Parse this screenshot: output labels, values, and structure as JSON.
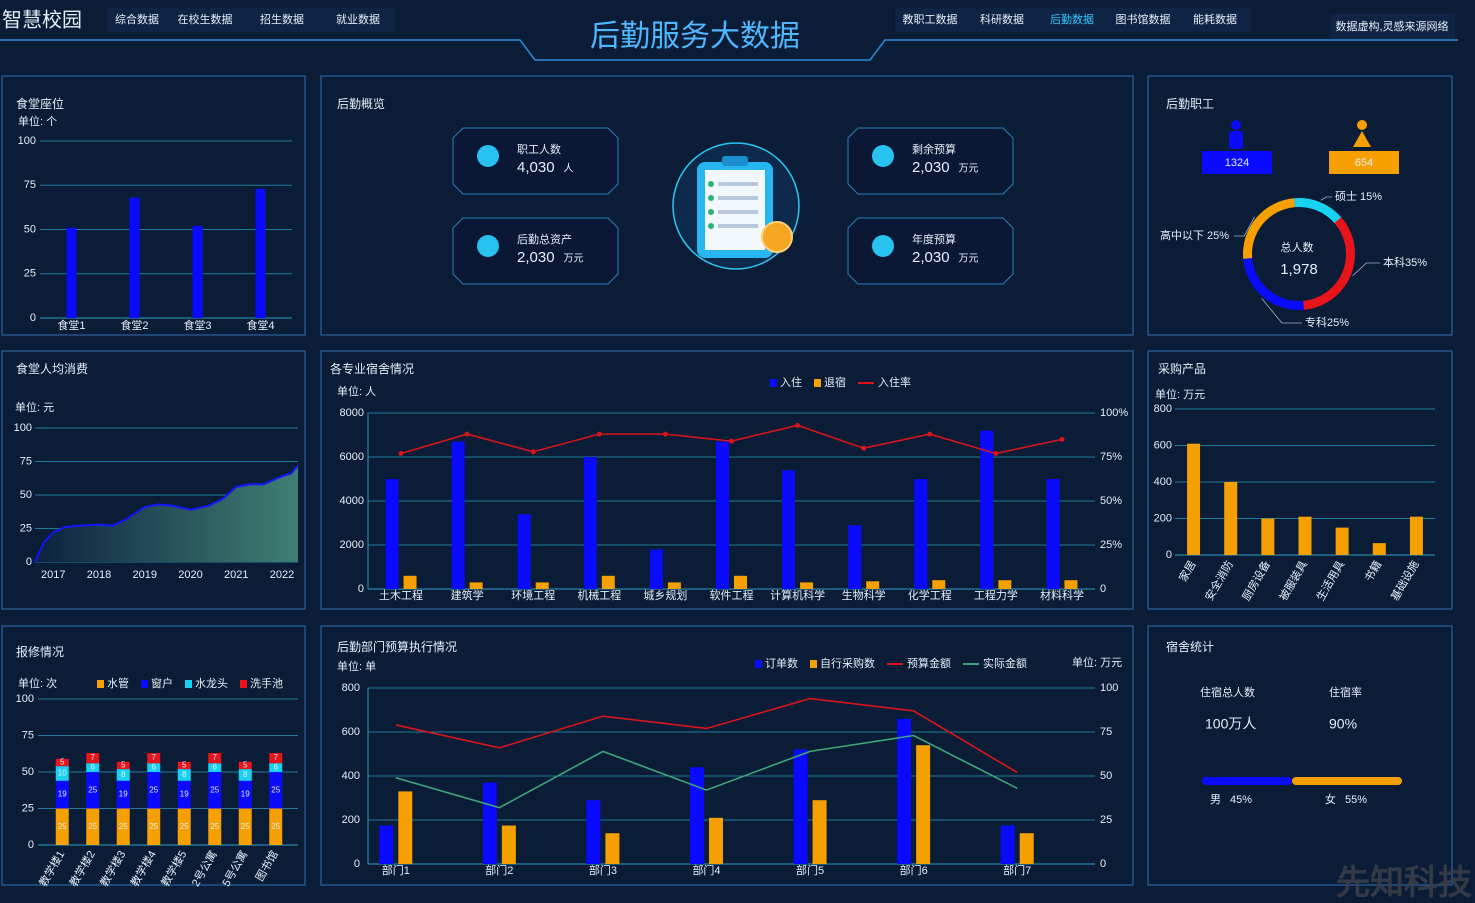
{
  "header": {
    "brand": "智慧校园",
    "title": "后勤服务大数据",
    "nav_left": [
      "综合数据",
      "在校生数据",
      "招生数据",
      "就业数据"
    ],
    "nav_right": [
      "教职工数据",
      "科研数据",
      "后勤数据",
      "图书馆数据",
      "能耗数据"
    ],
    "note": "数据虚构,灵感来源网络",
    "watermark": "先知科技"
  },
  "overview": {
    "title": "后勤概览",
    "items": [
      {
        "label": "职工人数",
        "value": "4,030",
        "unit": "人"
      },
      {
        "label": "剩余预算",
        "value": "2,030",
        "unit": "万元"
      },
      {
        "label": "后勤总资产",
        "value": "2,030",
        "unit": "万元"
      },
      {
        "label": "年度预算",
        "value": "2,030",
        "unit": "万元"
      }
    ]
  },
  "staff": {
    "title": "后勤职工",
    "male": 1324,
    "female": 654,
    "total_label": "总人数",
    "total": "1,978"
  },
  "dorm": {
    "title": "宿舍统计",
    "total_label": "住宿总人数",
    "total": "100万人",
    "rate_label": "住宿率",
    "rate": "90%",
    "gender": {
      "labels": [
        "男",
        "女"
      ],
      "values": [
        45,
        55
      ],
      "value_labels": [
        "45%",
        "55%"
      ],
      "colors": [
        "#0a0aff",
        "#f5a000"
      ]
    }
  },
  "chart_data": [
    {
      "type": "bar",
      "title": "食堂座位",
      "unit_label": "单位: 个",
      "categories": [
        "食堂1",
        "食堂2",
        "食堂3",
        "食堂4"
      ],
      "values": [
        51,
        68,
        52,
        73
      ],
      "color": "#0a0aff",
      "ylim": [
        0,
        100
      ],
      "yticks": [
        0,
        25,
        50,
        75,
        100
      ],
      "grid": true
    },
    {
      "type": "pie",
      "values": [
        15,
        35,
        25,
        25
      ],
      "value_labels": [
        "硕士 15%",
        "本科35%",
        "专科25%",
        "高中以下 25%"
      ],
      "colors": [
        "#18d2f2",
        "#e8141b",
        "#0a0aff",
        "#f5a000"
      ]
    },
    {
      "type": "area",
      "title": "食堂人均消费",
      "unit_label": "单位: 元",
      "x": [
        2016.6,
        2016.8,
        2017.0,
        2017.25,
        2017.5,
        2018.0,
        2018.3,
        2018.6,
        2019.0,
        2019.3,
        2019.6,
        2020.0,
        2020.4,
        2020.7,
        2021.0,
        2021.3,
        2021.6,
        2022.0,
        2022.2,
        2022.35
      ],
      "values": [
        0,
        15,
        22,
        26,
        27,
        28,
        27,
        32,
        41,
        43,
        42,
        39,
        42,
        47,
        56,
        58,
        58,
        64,
        66,
        72
      ],
      "color": "#1414ff",
      "xlim": [
        2016.6,
        2022.35
      ],
      "xticks": [
        2017,
        2018,
        2019,
        2020,
        2021,
        2022
      ],
      "ylim": [
        0,
        100
      ],
      "yticks": [
        0,
        25,
        50,
        75,
        100
      ],
      "grid": true
    },
    {
      "type": "bar",
      "title": "各专业宿舍情况",
      "unit_label": "单位: 人",
      "categories": [
        "土木工程",
        "建筑学",
        "环境工程",
        "机械工程",
        "城乡规划",
        "软件工程",
        "计算机科学",
        "生物科学",
        "化学工程",
        "工程力学",
        "材料科学"
      ],
      "series": [
        {
          "name": "入住",
          "color": "#0a0aff",
          "values": [
            5000,
            6700,
            3400,
            6000,
            1800,
            6700,
            5400,
            2900,
            5000,
            7200,
            5000
          ]
        },
        {
          "name": "退宿",
          "color": "#f5a000",
          "values": [
            600,
            300,
            300,
            600,
            300,
            600,
            300,
            350,
            400,
            400,
            400
          ]
        },
        {
          "name": "入住率",
          "color": "#d9141b",
          "type": "line",
          "axis": "y2",
          "values": [
            77,
            88,
            78,
            88,
            88,
            84,
            93,
            80,
            88,
            77,
            85
          ]
        }
      ],
      "ylim": [
        0,
        8000
      ],
      "yticks": [
        0,
        2000,
        4000,
        6000,
        8000
      ],
      "y2lim": [
        0,
        100
      ],
      "y2ticks": [
        0,
        {
          "value": 25,
          "label": "25%"
        },
        {
          "value": 50,
          "label": "50%"
        },
        {
          "value": 75,
          "label": "75%"
        },
        {
          "value": 100,
          "label": "100%"
        }
      ],
      "grid": true
    },
    {
      "type": "bar",
      "title": "采购产品",
      "unit_label": "单位: 万元",
      "categories": [
        "家居",
        "安全消防",
        "厨房设备",
        "被服装具",
        "生活用具",
        "书籍",
        "基础设施"
      ],
      "values": [
        610,
        400,
        200,
        210,
        150,
        65,
        210
      ],
      "color": "#f5a000",
      "ylim": [
        0,
        800
      ],
      "yticks": [
        0,
        200,
        400,
        600,
        800
      ],
      "grid": true
    },
    {
      "type": "bar",
      "stacked": true,
      "title": "报修情况",
      "unit_label": "单位: 次",
      "categories": [
        "教学楼1",
        "教学楼2",
        "教学楼3",
        "教学楼4",
        "教学楼5",
        "2号公寓",
        "5号公寓",
        "图书馆"
      ],
      "series": [
        {
          "name": "水管",
          "color": "#f5a000",
          "values": [
            25,
            25,
            25,
            25,
            25,
            25,
            25,
            25
          ]
        },
        {
          "name": "窗户",
          "color": "#0a0aff",
          "values": [
            19,
            25,
            19,
            25,
            19,
            25,
            19,
            25
          ]
        },
        {
          "name": "水龙头",
          "color": "#18d2f2",
          "values": [
            10,
            6,
            8,
            6,
            8,
            6,
            8,
            6
          ]
        },
        {
          "name": "洗手池",
          "color": "#e8141b",
          "values": [
            5,
            7,
            5,
            7,
            5,
            7,
            5,
            7
          ]
        }
      ],
      "ylim": [
        0,
        100
      ],
      "yticks": [
        0,
        25,
        50,
        75,
        100
      ],
      "grid": true
    },
    {
      "type": "bar",
      "title": "后勤部门预算执行情况",
      "unit_label": "单位: 单",
      "y2_unit_label": "单位: 万元",
      "categories": [
        "部门1",
        "部门2",
        "部门3",
        "部门4",
        "部门5",
        "部门6",
        "部门7"
      ],
      "series": [
        {
          "name": "订单数",
          "color": "#0a0aff",
          "values": [
            175,
            370,
            290,
            440,
            520,
            660,
            175
          ]
        },
        {
          "name": "自行采购数",
          "color": "#f5a000",
          "values": [
            330,
            175,
            140,
            210,
            290,
            540,
            140
          ]
        },
        {
          "name": "预算金额",
          "color": "#d9141b",
          "type": "line",
          "axis": "y2",
          "values": [
            79,
            66,
            84,
            77,
            94,
            87,
            52
          ]
        },
        {
          "name": "实际金额",
          "color": "#3fa67a",
          "type": "line",
          "axis": "y2",
          "values": [
            49,
            32,
            64,
            42,
            64,
            73,
            43
          ]
        }
      ],
      "ylim": [
        0,
        800
      ],
      "yticks": [
        0,
        200,
        400,
        600,
        800
      ],
      "y2lim": [
        0,
        100
      ],
      "y2ticks": [
        0,
        25,
        50,
        75,
        100
      ],
      "grid": true
    }
  ]
}
